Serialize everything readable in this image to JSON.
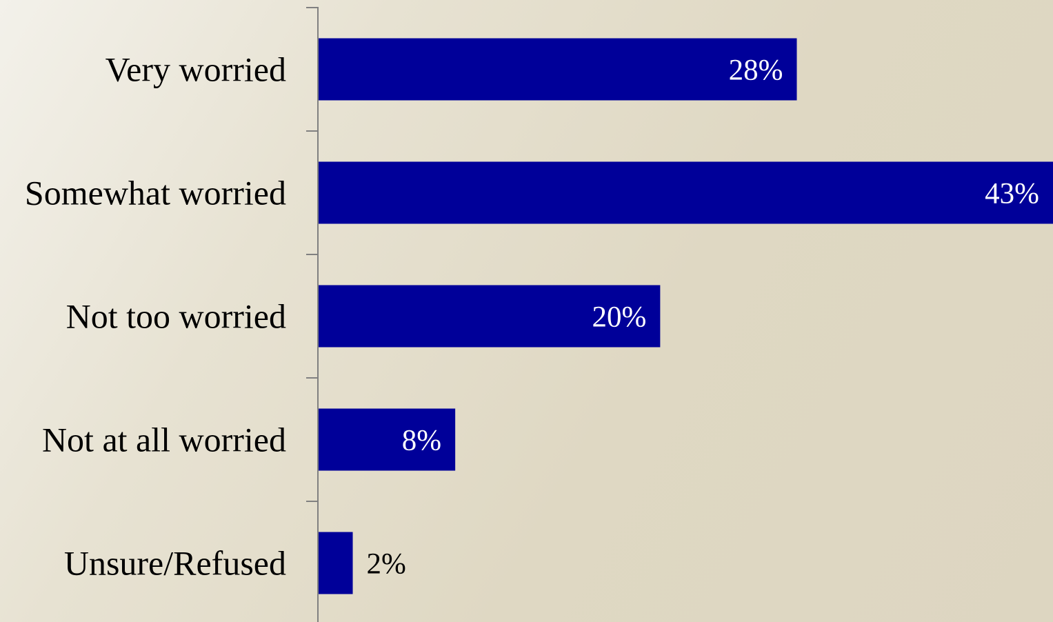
{
  "chart_data": {
    "type": "bar",
    "orientation": "horizontal",
    "categories": [
      "Very worried",
      "Somewhat worried",
      "Not too worried",
      "Not at all worried",
      "Unsure/Refused"
    ],
    "values": [
      28,
      43,
      20,
      8,
      2
    ],
    "value_labels": [
      "28%",
      "43%",
      "20%",
      "8%",
      "2%"
    ],
    "unit": "%",
    "xlim": [
      0,
      43
    ],
    "grid": false,
    "legend": "none",
    "colors": {
      "bar": "#000099",
      "label_inside": "#ffffff",
      "label_outside": "#000000",
      "axis": "#808080"
    }
  }
}
